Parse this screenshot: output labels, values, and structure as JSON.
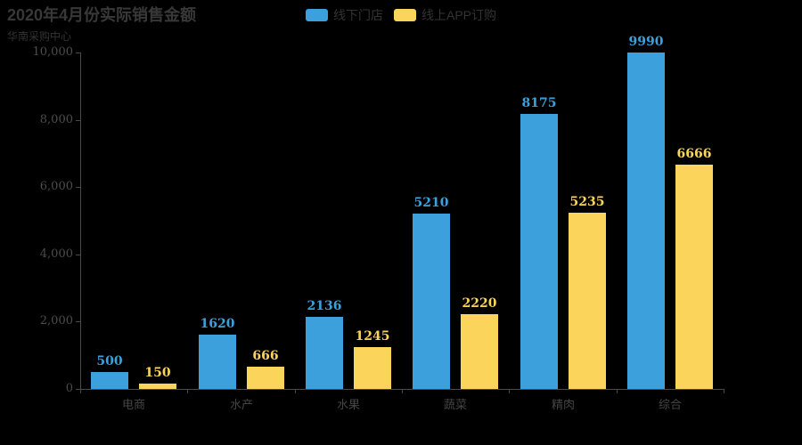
{
  "chart_data": {
    "type": "bar",
    "title": "2020年4月份实际销售金额",
    "subtitle": "华南采购中心",
    "categories": [
      "电商",
      "水产",
      "水果",
      "蔬菜",
      "精肉",
      "综合"
    ],
    "series": [
      {
        "name": "线下门店",
        "color": "#3ba0db",
        "values": [
          500,
          1620,
          2136,
          5210,
          8175,
          9990
        ]
      },
      {
        "name": "线上APP订购",
        "color": "#fbd45b",
        "values": [
          150,
          666,
          1245,
          2220,
          5235,
          6666
        ]
      }
    ],
    "ylim": [
      0,
      10000
    ],
    "y_ticks": [
      {
        "label": "0",
        "value": 0
      },
      {
        "label": "2,000",
        "value": 2000
      },
      {
        "label": "4,000",
        "value": 4000
      },
      {
        "label": "6,000",
        "value": 6000
      },
      {
        "label": "8,000",
        "value": 8000
      },
      {
        "label": "10,000",
        "value": 10000
      }
    ],
    "legend_position": "top-center",
    "grid": false,
    "background": "#000000",
    "value_labels": true,
    "axis_color": "#4a4a4a"
  }
}
